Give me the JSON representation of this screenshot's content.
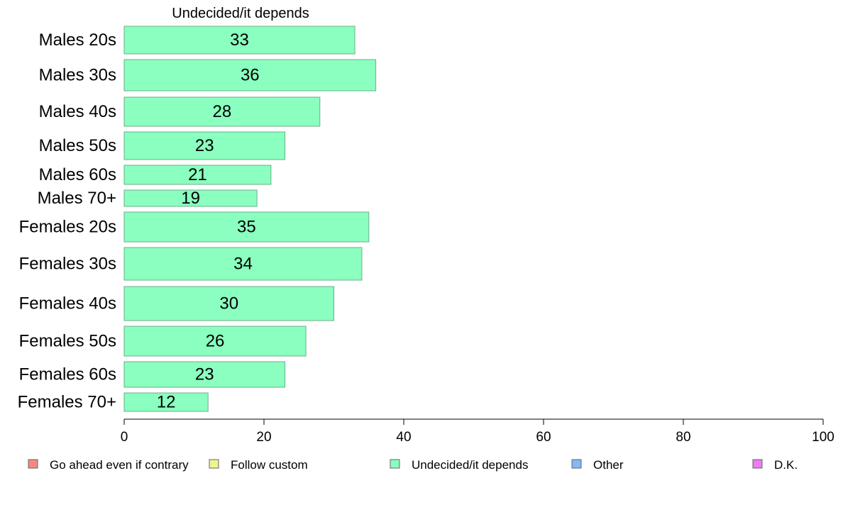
{
  "chart_data": {
    "type": "bar",
    "orientation": "horizontal",
    "title": "Undecided/it depends",
    "categories": [
      "Males 20s",
      "Males 30s",
      "Males 40s",
      "Males 50s",
      "Males 60s",
      "Males 70+",
      "Females 20s",
      "Females 30s",
      "Females 40s",
      "Females 50s",
      "Females 60s",
      "Females 70+"
    ],
    "series": [
      {
        "name": "Undecided/it depends",
        "values": [
          33,
          36,
          28,
          23,
          21,
          19,
          35,
          34,
          30,
          26,
          23,
          12
        ]
      }
    ],
    "xlim": [
      0,
      100
    ],
    "xticks": [
      0,
      20,
      40,
      60,
      80,
      100
    ],
    "grid": false,
    "legend_position": "bottom",
    "legend": [
      {
        "name": "Go ahead even if contrary",
        "color": "#f38a86"
      },
      {
        "name": "Follow custom",
        "color": "#eef58f"
      },
      {
        "name": "Undecided/it depends",
        "color": "#8affbf"
      },
      {
        "name": "Other",
        "color": "#86b7f6"
      },
      {
        "name": "D.K.",
        "color": "#eb7cf3"
      }
    ],
    "bar_color": "#8affbf"
  }
}
